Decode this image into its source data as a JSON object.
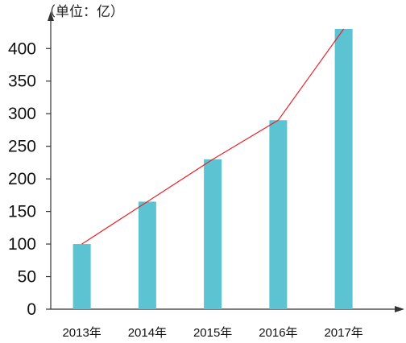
{
  "chart_data": {
    "type": "bar",
    "unit_label": "（单位：亿）",
    "categories": [
      "2013年",
      "2014年",
      "2015年",
      "2016年",
      "2017年"
    ],
    "series": [
      {
        "values": [
          100,
          165,
          230,
          290,
          430
        ]
      }
    ],
    "trend_line": {
      "values": [
        100,
        165,
        230,
        290,
        430
      ]
    },
    "ylim": [
      0,
      430
    ],
    "yticks": [
      "0",
      "50",
      "100",
      "150",
      "200",
      "250",
      "300",
      "350",
      "400"
    ],
    "grid": false,
    "legend": "none",
    "colors": {
      "bar": "#5bc3d1",
      "trend_line": "#e8232b",
      "axis": "#333333"
    }
  }
}
